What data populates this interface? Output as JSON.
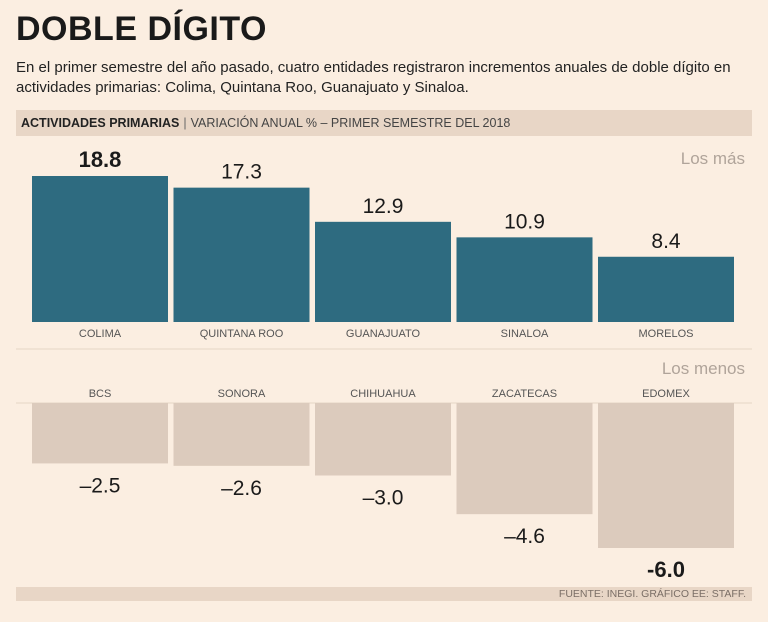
{
  "title": "DOBLE DÍGITO",
  "subtitle": "En el primer semestre del año pasado, cuatro entidades registraron incrementos anuales de doble dígito en actividades primarias: Colima, Quintana Roo, Guanajuato y Sinaloa.",
  "header": {
    "bold": "ACTIVIDADES PRIMARIAS",
    "separator": "|",
    "rest": "VARIACIÓN ANUAL % – PRIMER SEMESTRE DEL 2018"
  },
  "source": "FUENTE: INEGI. GRÁFICO EE: STAFF.",
  "colors": {
    "positive": "#2e6b80",
    "negative": "#dccbbd",
    "background": "#fbeee1",
    "band": "#e8d6c6"
  },
  "chart_data": [
    {
      "type": "bar",
      "title": "Los más",
      "categories": [
        "COLIMA",
        "QUINTANA ROO",
        "GUANAJUATO",
        "SINALOA",
        "MORELOS"
      ],
      "values": [
        18.8,
        17.3,
        12.9,
        10.9,
        8.4
      ],
      "value_labels": [
        "18.8",
        "17.3",
        "12.9",
        "10.9",
        "8.4"
      ],
      "highlight_index": 0,
      "ylim": [
        0,
        20
      ]
    },
    {
      "type": "bar",
      "title": "Los menos",
      "categories": [
        "BCS",
        "SONORA",
        "CHIHUAHUA",
        "ZACATECAS",
        "EDOMEX"
      ],
      "values": [
        -2.5,
        -2.6,
        -3.0,
        -4.6,
        -6.0
      ],
      "value_labels": [
        "–2.5",
        "–2.6",
        "–3.0",
        "–4.6",
        "-6.0"
      ],
      "highlight_index": 4,
      "ylim": [
        -6.5,
        0
      ]
    }
  ]
}
